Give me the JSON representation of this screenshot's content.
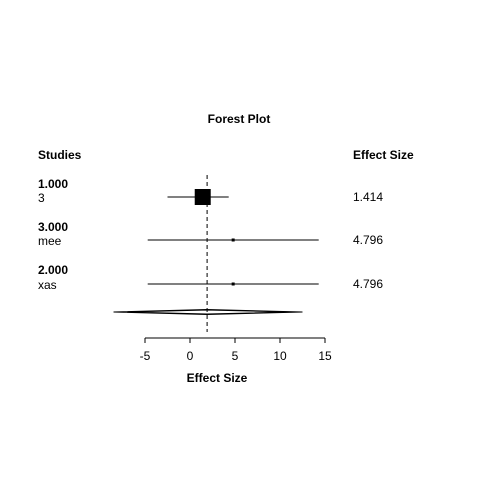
{
  "chart_data": {
    "type": "forest",
    "title": "Forest Plot",
    "left_header": "Studies",
    "right_header": "Effect Size",
    "xlabel": "Effect Size",
    "xlim": [
      -7.5,
      15
    ],
    "ticks": [
      -5,
      0,
      5,
      10,
      15
    ],
    "tick_labels": [
      "-5",
      "0",
      "5",
      "10",
      "15"
    ],
    "reference_line": 1.9,
    "studies": [
      {
        "id": "1.000",
        "name": "3",
        "estimate": 1.414,
        "estimate_label": "1.414",
        "lower": -2.5,
        "upper": 4.3,
        "weight": "large"
      },
      {
        "id": "3.000",
        "name": "mee",
        "estimate": 4.796,
        "estimate_label": "4.796",
        "lower": -4.7,
        "upper": 14.3,
        "weight": "small"
      },
      {
        "id": "2.000",
        "name": "xas",
        "estimate": 4.796,
        "estimate_label": "4.796",
        "lower": -4.7,
        "upper": 14.3,
        "weight": "small"
      }
    ],
    "summary_diamonds": [
      {
        "center": 1.9,
        "lower": -8.5,
        "upper": 12.5
      },
      {
        "center": 1.9,
        "lower": -7.0,
        "upper": 11.0
      }
    ]
  }
}
